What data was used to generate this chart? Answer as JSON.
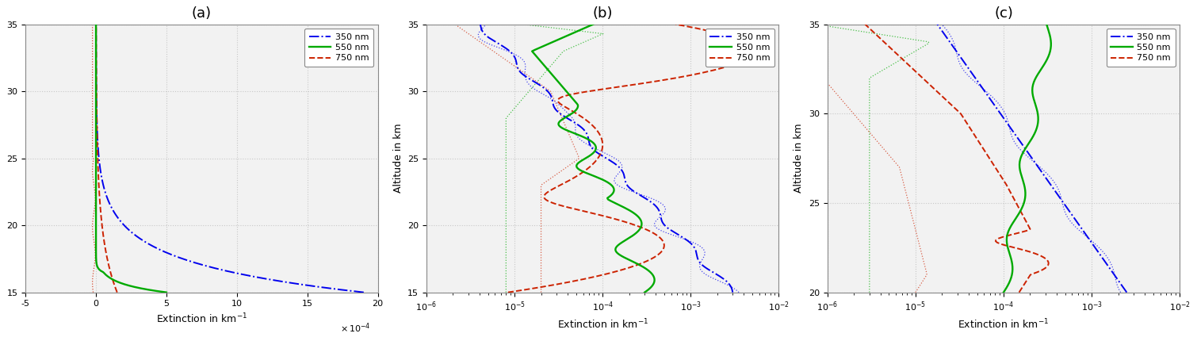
{
  "colors": {
    "blue": "#0000EE",
    "green": "#00AA00",
    "red": "#CC2200"
  },
  "bg_color": "#f0f0f0",
  "grid_color": "#b0b0b0",
  "legend_labels": [
    "350 nm",
    "550 nm",
    "750 nm"
  ]
}
